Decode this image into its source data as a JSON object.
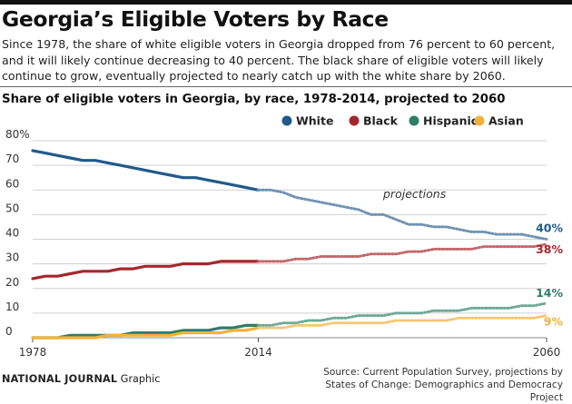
{
  "header": {
    "title": "Georgia’s Eligible Voters by Race",
    "subtitle": "Since 1978, the share of white eligible voters in Georgia dropped from 76 percent to 60 percent, and it will likely continue decreasing to 40 percent. The black share of eligible voters will likely continue to grow, eventually projected to nearly catch up with the white share by 2060."
  },
  "footer": {
    "brand": "NATIONAL JOURNAL",
    "brand_suffix": " Graphic",
    "source_line1": "Source: Current Population Survey, projections by",
    "source_line2": "States of Change: Demographics and Democracy Project"
  },
  "chart_data": {
    "type": "line",
    "title": "Share of eligible voters in Georgia, by race, 1978-2014, projected to 2060",
    "xlabel": "",
    "ylabel": "",
    "xlim": [
      1978,
      2060
    ],
    "ylim": [
      0,
      80
    ],
    "x_ticks": [
      "1978",
      "2014",
      "2060"
    ],
    "y_ticks": [
      "0",
      "10",
      "20",
      "30",
      "40",
      "50",
      "60",
      "70",
      "80%"
    ],
    "grid": true,
    "legend_position": "top-right",
    "annotation": "projections",
    "actual_x": [
      1978,
      1980,
      1982,
      1984,
      1986,
      1988,
      1990,
      1992,
      1994,
      1996,
      1998,
      2000,
      2002,
      2004,
      2006,
      2008,
      2010,
      2012,
      2014
    ],
    "projected_x": [
      2014,
      2016,
      2018,
      2020,
      2022,
      2024,
      2026,
      2028,
      2030,
      2032,
      2034,
      2036,
      2038,
      2040,
      2042,
      2044,
      2046,
      2048,
      2050,
      2052,
      2054,
      2056,
      2058,
      2060
    ],
    "series": [
      {
        "name": "White",
        "color": "#1f5a8b",
        "proj_color": "#6f93b3",
        "end_label": "40%",
        "actual": [
          76,
          75,
          74,
          73,
          72,
          72,
          71,
          70,
          69,
          68,
          67,
          66,
          65,
          65,
          64,
          63,
          62,
          61,
          60
        ],
        "projected": [
          60,
          60,
          59,
          57,
          56,
          55,
          54,
          53,
          52,
          50,
          50,
          48,
          46,
          46,
          45,
          45,
          44,
          43,
          43,
          42,
          42,
          42,
          41,
          40
        ]
      },
      {
        "name": "Black",
        "color": "#a5272e",
        "proj_color": "#c2676c",
        "end_label": "38%",
        "actual": [
          24,
          25,
          25,
          26,
          27,
          27,
          27,
          28,
          28,
          29,
          29,
          29,
          30,
          30,
          30,
          31,
          31,
          31,
          31
        ],
        "projected": [
          31,
          31,
          31,
          32,
          32,
          33,
          33,
          33,
          33,
          34,
          34,
          34,
          35,
          35,
          36,
          36,
          36,
          36,
          37,
          37,
          37,
          37,
          37,
          38
        ]
      },
      {
        "name": "Hispanic",
        "color": "#2e7d67",
        "proj_color": "#6fa896",
        "end_label": "14%",
        "actual": [
          0,
          0,
          0,
          1,
          1,
          1,
          1,
          1,
          2,
          2,
          2,
          2,
          3,
          3,
          3,
          4,
          4,
          5,
          5
        ],
        "projected": [
          5,
          5,
          6,
          6,
          7,
          7,
          8,
          8,
          9,
          9,
          9,
          10,
          10,
          10,
          11,
          11,
          11,
          12,
          12,
          12,
          12,
          13,
          13,
          14
        ]
      },
      {
        "name": "Asian",
        "color": "#f2b23a",
        "proj_color": "#f5c870",
        "end_label": "9%",
        "actual": [
          0,
          0,
          0,
          0,
          0,
          0,
          1,
          1,
          1,
          1,
          1,
          1,
          2,
          2,
          2,
          2,
          3,
          3,
          4
        ],
        "projected": [
          4,
          4,
          4,
          5,
          5,
          5,
          6,
          6,
          6,
          6,
          6,
          7,
          7,
          7,
          7,
          7,
          8,
          8,
          8,
          8,
          8,
          8,
          8,
          9
        ]
      }
    ]
  }
}
